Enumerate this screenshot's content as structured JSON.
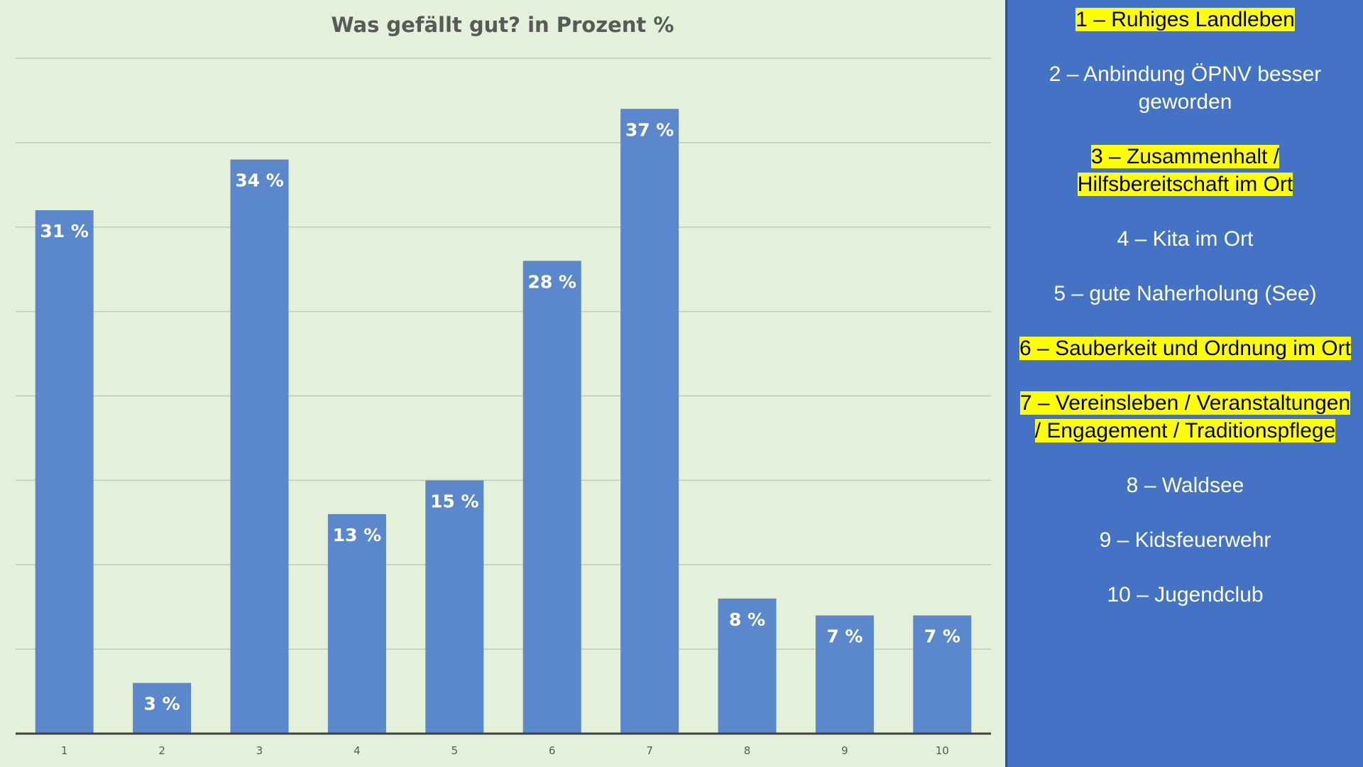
{
  "chart_data": {
    "type": "bar",
    "title": "Was gefällt gut? in Prozent %",
    "categories": [
      "1",
      "2",
      "3",
      "4",
      "5",
      "6",
      "7",
      "8",
      "9",
      "10"
    ],
    "values": [
      31,
      3,
      34,
      13,
      15,
      28,
      37,
      8,
      7,
      7
    ],
    "value_labels": [
      "31 %",
      "3 %",
      "34 %",
      "13 %",
      "15 %",
      "28 %",
      "37 %",
      "8 %",
      "7 %",
      "7 %"
    ],
    "xlabel": "",
    "ylabel": "",
    "ylim": [
      0,
      40
    ],
    "grid": true,
    "bar_color": "#5b87cc",
    "legend_placement": "right"
  },
  "legend": {
    "items": [
      {
        "text": "1 –  Ruhiges Landleben",
        "highlight": true
      },
      {
        "text": "2 – Anbindung ÖPNV besser geworden",
        "highlight": false
      },
      {
        "text": "3 – Zusammenhalt / Hilfsbereitschaft im Ort",
        "highlight": true
      },
      {
        "text": "4 – Kita im Ort",
        "highlight": false
      },
      {
        "text": "5 – gute Naherholung (See)",
        "highlight": false
      },
      {
        "text": "6 – Sauberkeit und Ordnung im Ort",
        "highlight": true
      },
      {
        "text": "7 – Vereinsleben / Veranstaltungen / Engagement / Traditionspflege",
        "highlight": true
      },
      {
        "text": "8 – Waldsee",
        "highlight": false
      },
      {
        "text": "9 – Kidsfeuerwehr",
        "highlight": false
      },
      {
        "text": "10 – Jugendclub",
        "highlight": false
      }
    ],
    "panel_color": "#4472c4",
    "highlight_color": "#ffff00"
  }
}
